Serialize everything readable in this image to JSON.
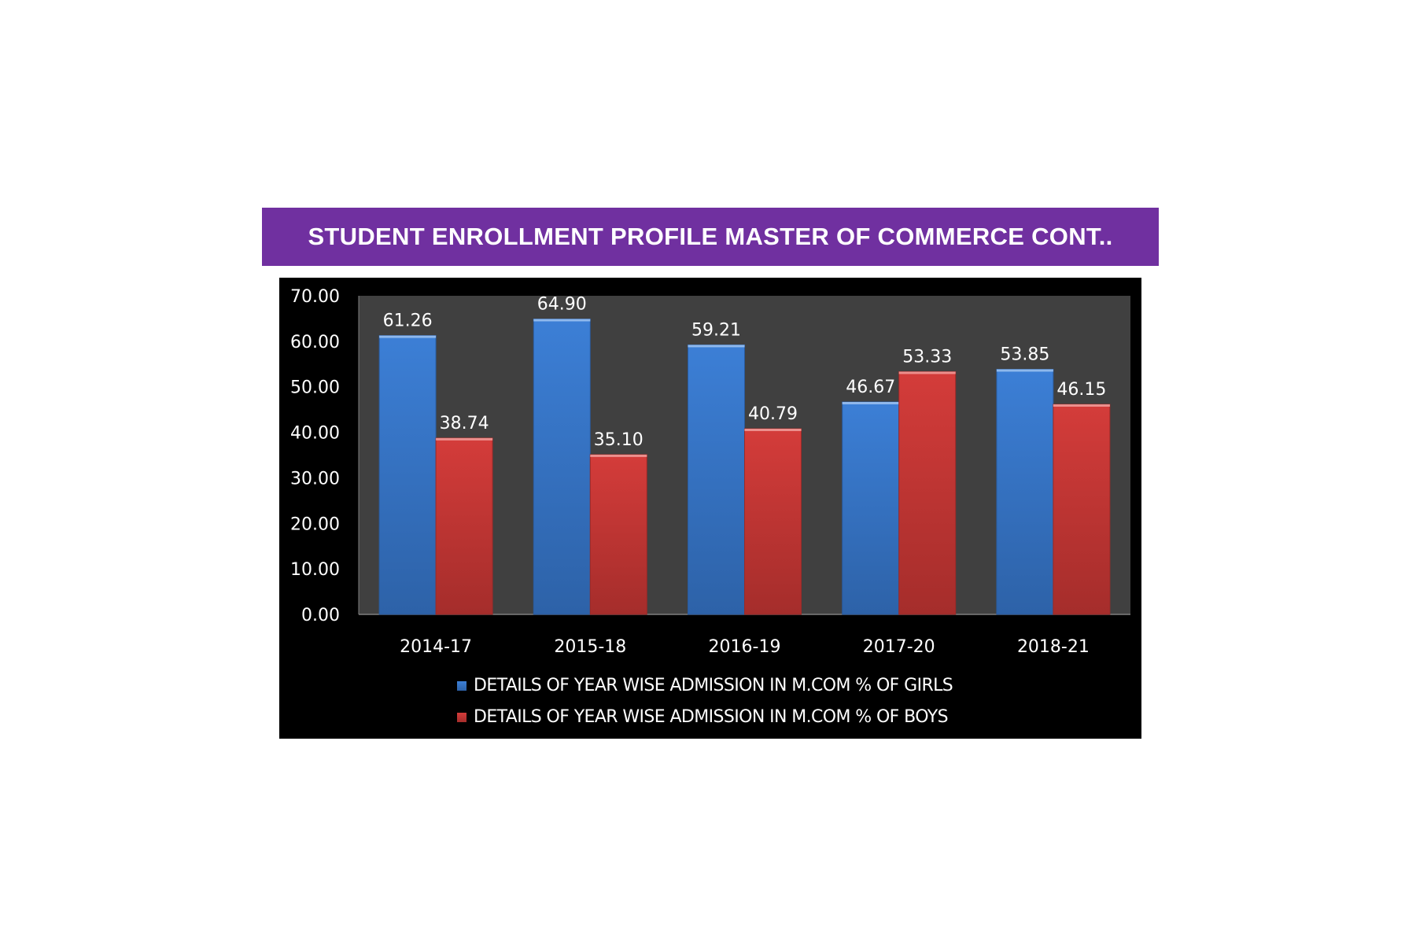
{
  "header": {
    "title": "STUDENT ENROLLMENT PROFILE MASTER OF COMMERCE CONT.."
  },
  "colors": {
    "banner": "#7030a0",
    "chart_background": "#000000",
    "plot_background": "#404040",
    "girls": "#3c7fd6",
    "boys": "#d43c3a",
    "text": "#ffffff"
  },
  "chart_data": {
    "type": "bar",
    "categories": [
      "2014-17",
      "2015-18",
      "2016-19",
      "2017-20",
      "2018-21"
    ],
    "series": [
      {
        "name": "DETAILS OF YEAR WISE ADMISSION IN M.COM % OF GIRLS",
        "values": [
          61.26,
          64.9,
          59.21,
          46.67,
          53.85
        ],
        "labels": [
          "61.26",
          "64.90",
          "59.21",
          "46.67",
          "53.85"
        ],
        "color": "#3c7fd6"
      },
      {
        "name": "DETAILS OF YEAR WISE ADMISSION IN M.COM % OF BOYS",
        "values": [
          38.74,
          35.1,
          40.79,
          53.33,
          46.15
        ],
        "labels": [
          "38.74",
          "35.10",
          "40.79",
          "53.33",
          "46.15"
        ],
        "color": "#d43c3a"
      }
    ],
    "ylim": [
      0,
      70
    ],
    "yticks": [
      "0.00",
      "10.00",
      "20.00",
      "30.00",
      "40.00",
      "50.00",
      "60.00",
      "70.00"
    ],
    "grid": false,
    "legend": "bottom"
  }
}
